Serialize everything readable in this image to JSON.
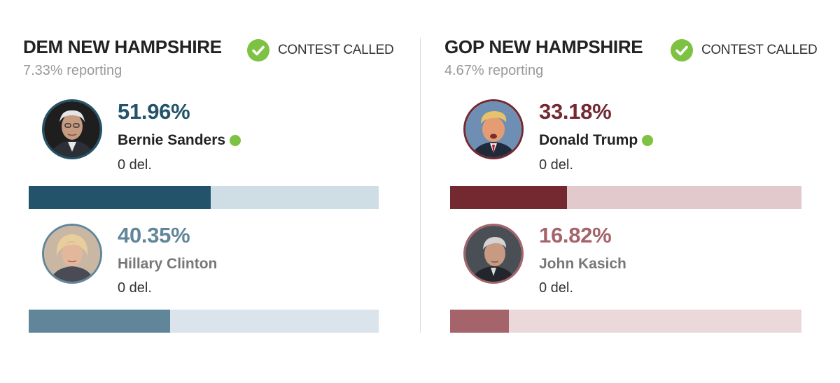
{
  "colors": {
    "check_green": "#7dc242",
    "dem_primary": "#22536a",
    "dem_primary_track": "#cfdde5",
    "dem_secondary": "#628699",
    "dem_secondary_track": "#dbe4eb",
    "gop_primary": "#742830",
    "gop_primary_track": "#e2c9cc",
    "gop_secondary": "#a4646a",
    "gop_secondary_track": "#ead8da",
    "name_primary": "#222222",
    "name_secondary": "#777777"
  },
  "dem": {
    "title": "DEM NEW HAMPSHIRE",
    "status": "CONTEST CALLED",
    "status_icon": "check-circle-icon",
    "reporting": "7.33% reporting",
    "candidates": [
      {
        "pct_label": "51.96%",
        "pct_value": 51.96,
        "name": "Bernie Sanders",
        "delegates": "0 del.",
        "winner": true
      },
      {
        "pct_label": "40.35%",
        "pct_value": 40.35,
        "name": "Hillary Clinton",
        "delegates": "0 del.",
        "winner": false
      }
    ]
  },
  "gop": {
    "title": "GOP NEW HAMPSHIRE",
    "status": "CONTEST CALLED",
    "status_icon": "check-circle-icon",
    "reporting": "4.67% reporting",
    "candidates": [
      {
        "pct_label": "33.18%",
        "pct_value": 33.18,
        "name": "Donald Trump",
        "delegates": "0 del.",
        "winner": true
      },
      {
        "pct_label": "16.82%",
        "pct_value": 16.82,
        "name": "John Kasich",
        "delegates": "0 del.",
        "winner": false
      }
    ]
  }
}
